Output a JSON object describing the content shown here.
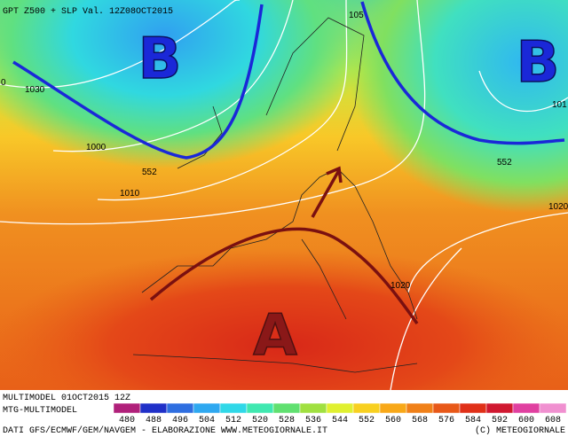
{
  "header": {
    "title": "GPT Z500 + SLP Val. 12Z08OCT2015"
  },
  "pressure_centers": [
    {
      "label": "B"
    },
    {
      "label": "B"
    },
    {
      "label": "A"
    }
  ],
  "contour_labels": [
    "1030",
    "0",
    "1000",
    "1010",
    "552",
    "105",
    "552",
    "101",
    "1020",
    "1020"
  ],
  "footer": {
    "run": "MULTIMODEL 01OCT2015 12Z",
    "model": "MTG-MULTIMODEL",
    "credits": "DATI GFS/ECMWF/GEM/NAVGEM - ELABORAZIONE WWW.METEOGIORNALE.IT",
    "copyright": "(C) METEOGIORNALE"
  },
  "colorbar": {
    "labels": [
      480,
      488,
      496,
      504,
      512,
      520,
      528,
      536,
      544,
      552,
      560,
      568,
      576,
      584,
      592,
      600,
      608
    ],
    "colors": [
      "#b0207a",
      "#2030c8",
      "#2f6ee0",
      "#2fa8f0",
      "#30d8e8",
      "#40e8b0",
      "#60e070",
      "#a0e040",
      "#e0f030",
      "#f8d020",
      "#f8a818",
      "#f08018",
      "#e85818",
      "#e03018",
      "#d01830",
      "#e040a0",
      "#f090d0"
    ]
  }
}
